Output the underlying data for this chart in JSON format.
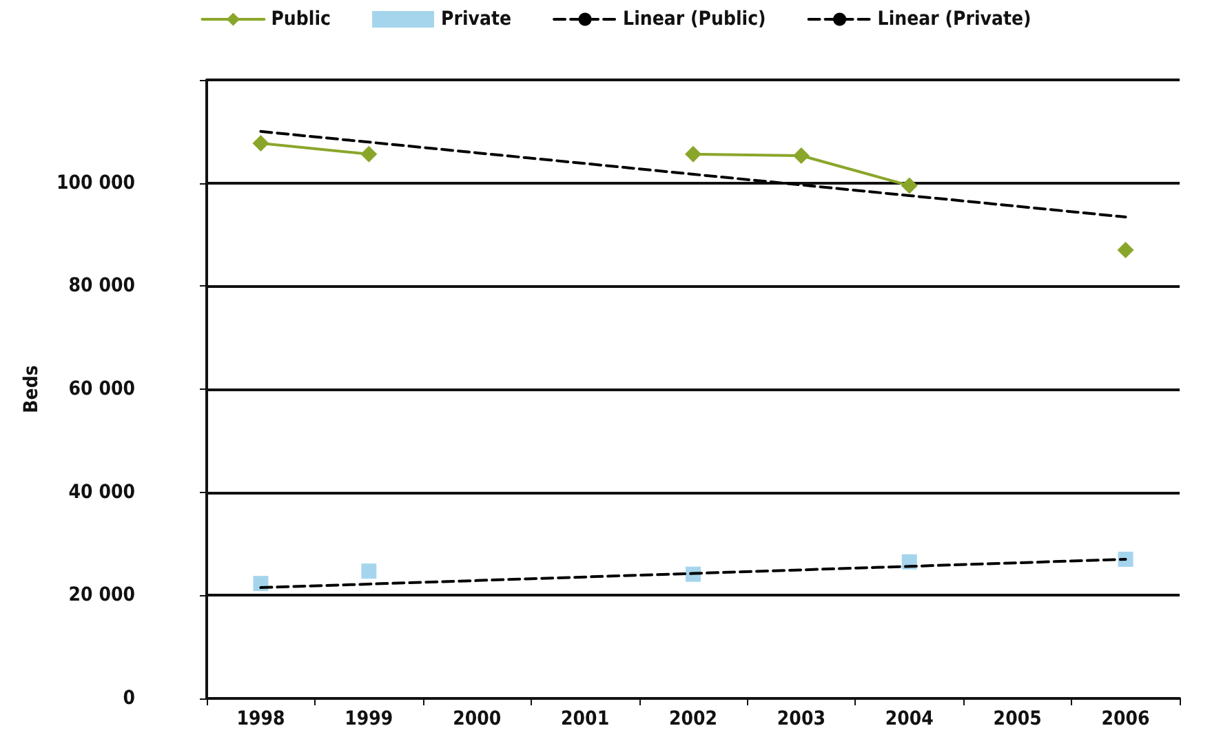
{
  "chart_data": {
    "type": "line",
    "ylabel": "Beds",
    "categories": [
      "1998",
      "1999",
      "2000",
      "2001",
      "2002",
      "2003",
      "2004",
      "2005",
      "2006"
    ],
    "series": [
      {
        "name": "Public",
        "color": "#8aa62a",
        "marker": "diamond",
        "line_style": "solid",
        "values": [
          107700,
          105600,
          null,
          null,
          105600,
          105300,
          99500,
          null,
          87000
        ]
      },
      {
        "name": "Private",
        "type": "scatter",
        "color": "#8fcbe8",
        "marker": "square",
        "values": [
          22300,
          24700,
          null,
          null,
          24100,
          null,
          26500,
          null,
          27000
        ]
      },
      {
        "name": "Linear (Public)",
        "color": "#000000",
        "marker": "none",
        "line_style": "dashed",
        "values": [
          110000,
          107925,
          105850,
          103775,
          101700,
          99625,
          97550,
          95475,
          93400
        ]
      },
      {
        "name": "Linear (Private)",
        "color": "#000000",
        "marker": "none",
        "line_style": "dashed",
        "values": [
          21500,
          22188,
          22875,
          23563,
          24250,
          24938,
          25625,
          26313,
          27000
        ]
      }
    ],
    "ylim": [
      0,
      120000
    ],
    "yticks": [
      0,
      {
        "value": 20000,
        "label": "20 000"
      },
      {
        "value": 40000,
        "label": "40 000"
      },
      {
        "value": 60000,
        "label": "60 000"
      },
      {
        "value": 80000,
        "label": "80 000"
      },
      {
        "value": 100000,
        "label": "100 000"
      },
      {
        "value": 120000,
        "label": null
      }
    ],
    "grid": "y",
    "legend": "top"
  }
}
